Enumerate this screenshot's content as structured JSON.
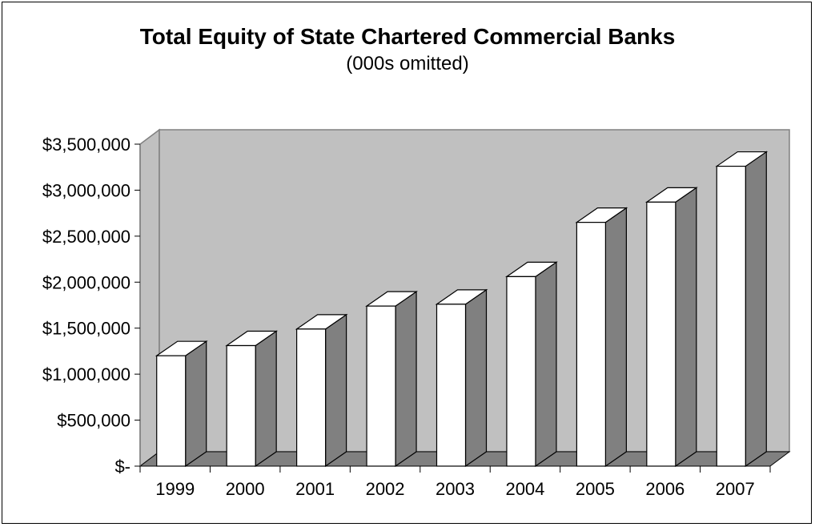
{
  "chart_data": {
    "type": "bar",
    "title": "Total Equity of State Chartered Commercial Banks",
    "subtitle": "(000s omitted)",
    "categories": [
      "1999",
      "2000",
      "2001",
      "2002",
      "2003",
      "2004",
      "2005",
      "2006",
      "2007"
    ],
    "values": [
      1200000,
      1310000,
      1490000,
      1740000,
      1760000,
      2060000,
      2650000,
      2870000,
      3260000
    ],
    "ylim": [
      0,
      3500000
    ],
    "y_ticks": [
      0,
      500000,
      1000000,
      1500000,
      2000000,
      2500000,
      3000000,
      3500000
    ],
    "y_tick_labels": [
      "$-",
      "$500,000",
      "$1,000,000",
      "$1,500,000",
      "$2,000,000",
      "$2,500,000",
      "$3,000,000",
      "$3,500,000"
    ],
    "xlabel": "",
    "ylabel": "",
    "grid": false,
    "legend": "none",
    "colors": {
      "wall": "#c0c0c0",
      "floor": "#808080",
      "bar_front": "#ffffff",
      "bar_side": "#808080",
      "bar_top": "#ffffff",
      "outline": "#000000"
    }
  }
}
